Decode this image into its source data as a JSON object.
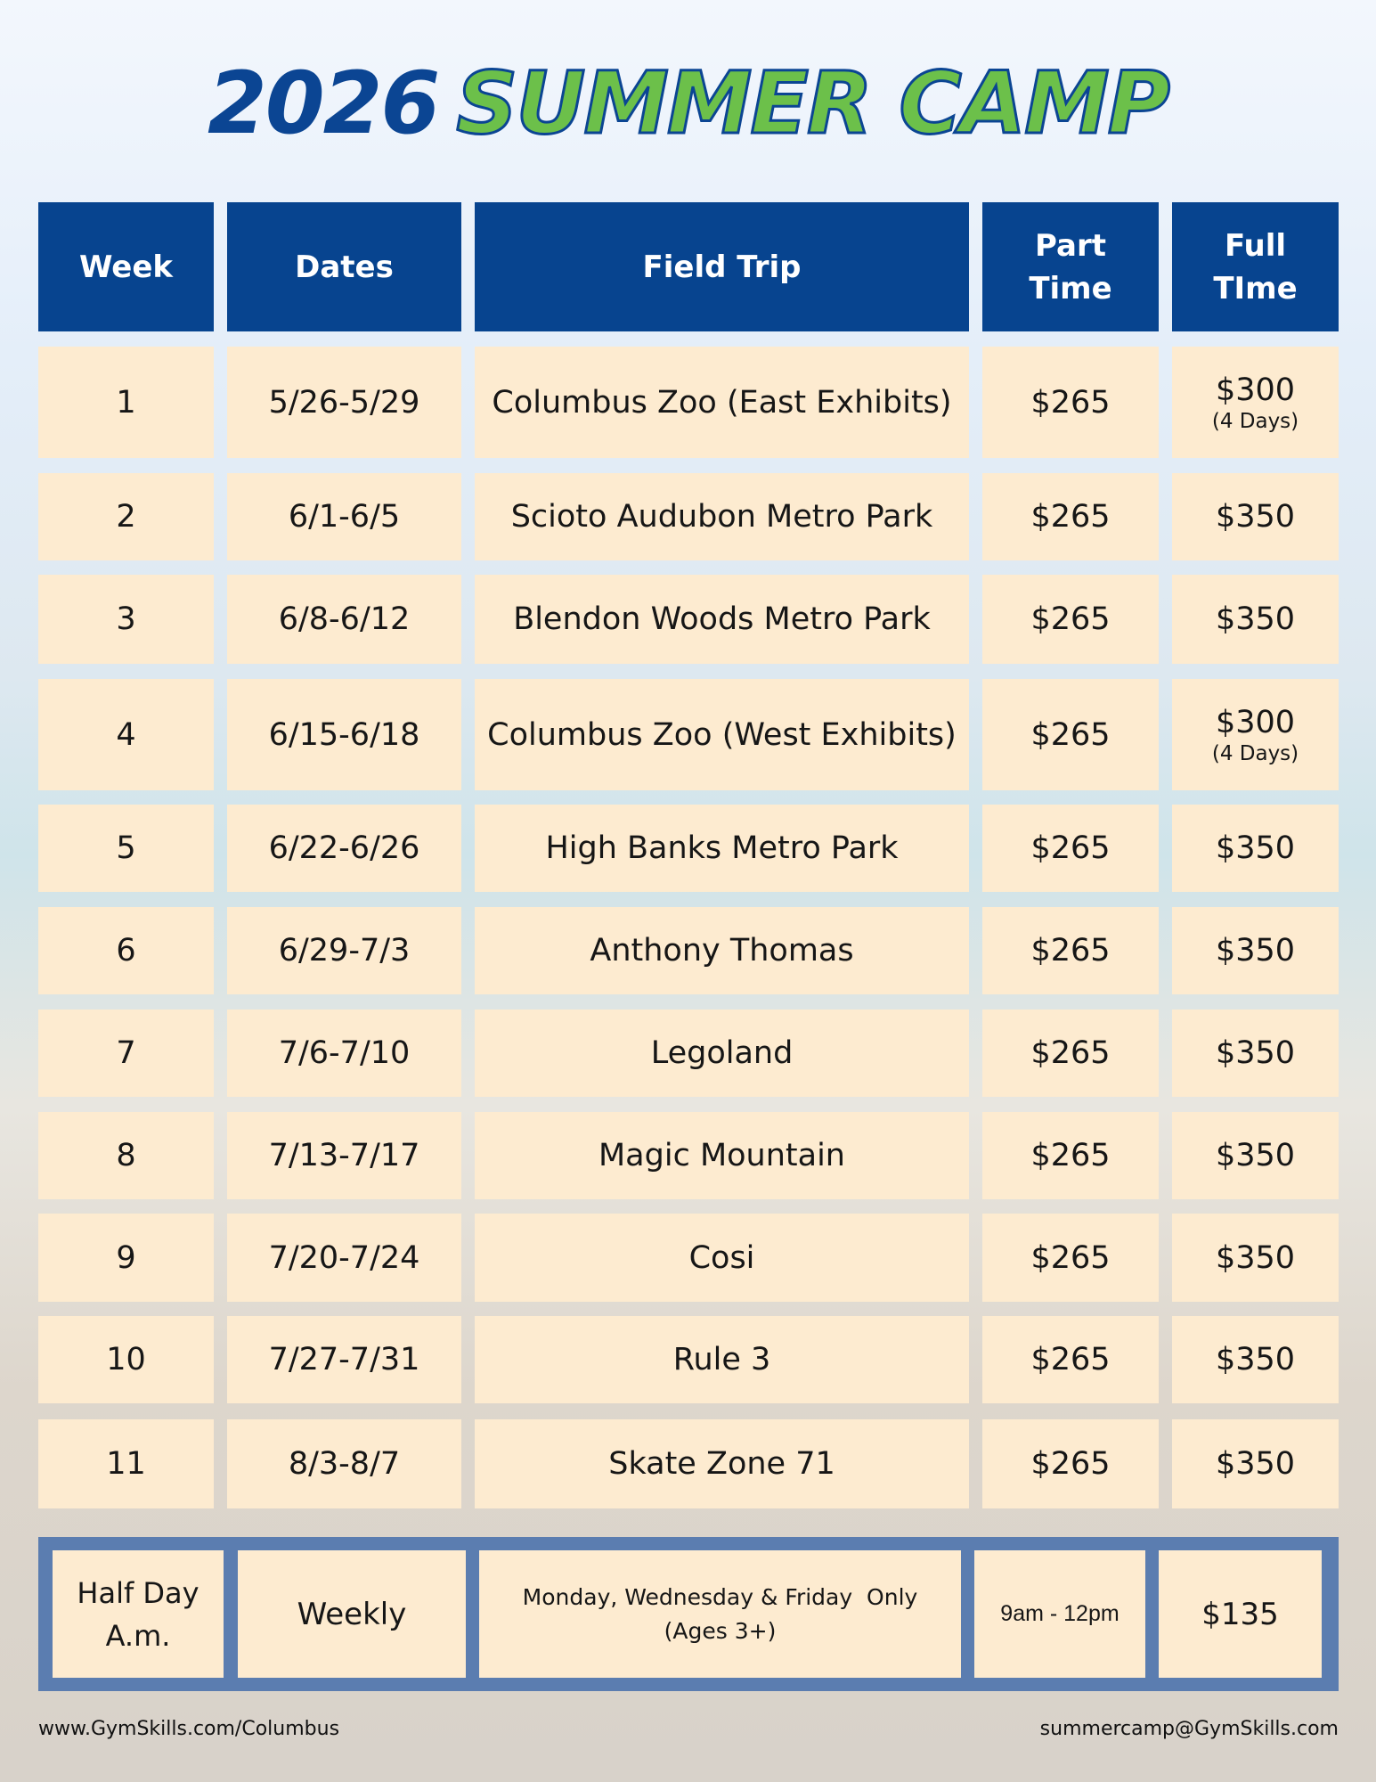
{
  "title": {
    "year": "2026",
    "name": "SUMMER CAMP"
  },
  "table": {
    "headers": [
      "Week",
      "Dates",
      "Field Trip",
      "Part Time",
      "Full TIme"
    ],
    "rows": [
      {
        "week": "1",
        "dates": "5/26-5/29",
        "trip": "Columbus Zoo (East Exhibits)",
        "part": "$265",
        "full": "$300",
        "note": "(4 Days)"
      },
      {
        "week": "2",
        "dates": "6/1-6/5",
        "trip": "Scioto Audubon Metro Park",
        "part": "$265",
        "full": "$350"
      },
      {
        "week": "3",
        "dates": "6/8-6/12",
        "trip": "Blendon Woods Metro Park",
        "part": "$265",
        "full": "$350"
      },
      {
        "week": "4",
        "dates": "6/15-6/18",
        "trip": "Columbus Zoo (West Exhibits)",
        "part": "$265",
        "full": "$300",
        "note": "(4 Days)"
      },
      {
        "week": "5",
        "dates": "6/22-6/26",
        "trip": "High Banks Metro Park",
        "part": "$265",
        "full": "$350"
      },
      {
        "week": "6",
        "dates": "6/29-7/3",
        "trip": "Anthony Thomas",
        "part": "$265",
        "full": "$350"
      },
      {
        "week": "7",
        "dates": "7/6-7/10",
        "trip": "Legoland",
        "part": "$265",
        "full": "$350"
      },
      {
        "week": "8",
        "dates": "7/13-7/17",
        "trip": "Magic Mountain",
        "part": "$265",
        "full": "$350"
      },
      {
        "week": "9",
        "dates": "7/20-7/24",
        "trip": "Cosi",
        "part": "$265",
        "full": "$350"
      },
      {
        "week": "10",
        "dates": "7/27-7/31",
        "trip": "Rule 3",
        "part": "$265",
        "full": "$350"
      },
      {
        "week": "11",
        "dates": "8/3-8/7",
        "trip": "Skate Zone 71",
        "part": "$265",
        "full": "$350"
      }
    ]
  },
  "half_day": {
    "label": "Half Day A.m.",
    "frequency": "Weekly",
    "days": "Monday, Wednesday & Friday  Only",
    "ages": "(Ages 3+)",
    "hours": "9am - 12pm",
    "price": "$135"
  },
  "footer": {
    "website": "www.GymSkills.com/Columbus",
    "email": "summercamp@GymSkills.com"
  }
}
